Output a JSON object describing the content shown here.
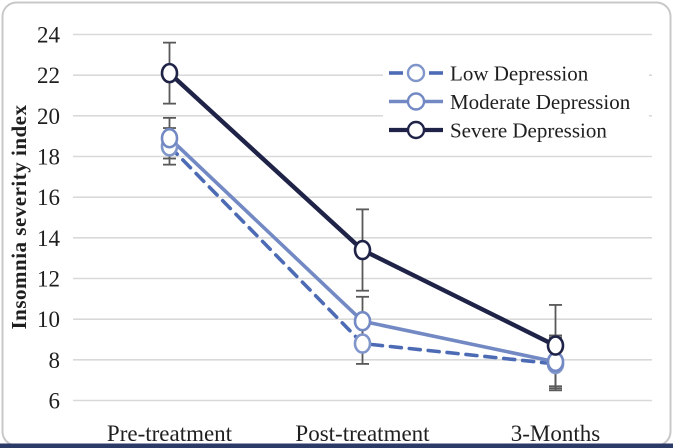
{
  "figure": {
    "description": "Line chart of insomnia severity index over treatment timepoints by depression severity group"
  },
  "chart_data": {
    "type": "line",
    "title": "",
    "xlabel": "",
    "ylabel": "Insomnia severity index",
    "categories": [
      "Pre-treatment",
      "Post-treatment",
      "3-Months"
    ],
    "ylim": [
      6,
      24
    ],
    "yticks": [
      6,
      8,
      10,
      12,
      14,
      16,
      18,
      20,
      22,
      24
    ],
    "grid": true,
    "legend_position": "upper-right",
    "series": [
      {
        "name": "Low Depression",
        "style": "dashed",
        "color": "#4d6bb4",
        "marker_color": "#8096ca",
        "values": [
          18.5,
          8.8,
          7.8
        ],
        "error_bars": [
          0.9,
          1.0,
          1.3
        ]
      },
      {
        "name": "Moderate Depression",
        "style": "solid",
        "color": "#7389c4",
        "marker_color": "#7389c4",
        "values": [
          18.9,
          9.9,
          7.9
        ],
        "error_bars": [
          1.0,
          1.2,
          1.3
        ]
      },
      {
        "name": "Severe Depression",
        "style": "solid",
        "color": "#1f2347",
        "marker_color": "#1f2347",
        "values": [
          22.1,
          13.4,
          8.7
        ],
        "error_bars": [
          1.5,
          2.0,
          2.0
        ]
      }
    ]
  },
  "colors": {
    "background": "#ffffff",
    "gridline": "#d9d9d9",
    "error_bar": "#595959",
    "text": "#1f1f1f",
    "frame_border": "#c8c8c8",
    "bottom_banner": "#2c3a67",
    "marker_fill": "#ffffff"
  }
}
